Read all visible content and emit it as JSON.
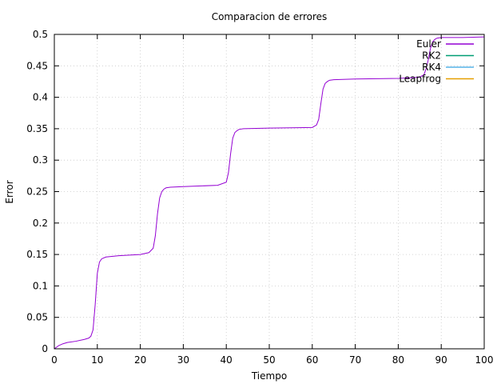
{
  "chart_data": {
    "type": "line",
    "title": "Comparacion de errores",
    "xlabel": "Tiempo",
    "ylabel": "Error",
    "xlim": [
      0,
      100
    ],
    "ylim": [
      0,
      0.5
    ],
    "xticks": [
      0,
      10,
      20,
      30,
      40,
      50,
      60,
      70,
      80,
      90,
      100
    ],
    "yticks": [
      0,
      0.05,
      0.1,
      0.15,
      0.2,
      0.25,
      0.3,
      0.35,
      0.4,
      0.45,
      0.5
    ],
    "grid": true,
    "legend_position": "top-right",
    "series": [
      {
        "name": "Euler",
        "color": "#9400d3",
        "x": [
          0,
          1,
          2,
          3,
          5,
          7,
          8,
          8.5,
          9,
          9.5,
          10,
          10.5,
          11,
          12,
          15,
          20,
          22,
          23,
          23.5,
          24,
          24.5,
          25,
          25.5,
          26,
          27,
          30,
          38,
          40,
          40.5,
          41,
          41.5,
          42,
          42.5,
          43,
          44,
          50,
          60,
          61,
          61.5,
          62,
          62.5,
          63,
          63.5,
          64,
          65,
          70,
          80,
          85,
          86,
          86.5,
          87,
          87.5,
          88,
          88.5,
          89,
          90,
          95,
          100
        ],
        "y": [
          0,
          0.005,
          0.008,
          0.01,
          0.012,
          0.015,
          0.017,
          0.02,
          0.03,
          0.07,
          0.12,
          0.138,
          0.143,
          0.146,
          0.148,
          0.15,
          0.153,
          0.16,
          0.18,
          0.215,
          0.24,
          0.25,
          0.254,
          0.256,
          0.257,
          0.258,
          0.26,
          0.265,
          0.28,
          0.31,
          0.335,
          0.344,
          0.347,
          0.349,
          0.35,
          0.351,
          0.352,
          0.356,
          0.365,
          0.39,
          0.413,
          0.422,
          0.425,
          0.427,
          0.428,
          0.429,
          0.43,
          0.432,
          0.436,
          0.446,
          0.46,
          0.478,
          0.488,
          0.492,
          0.494,
          0.495,
          0.495,
          0.496
        ]
      },
      {
        "name": "RK2",
        "color": "#009e73",
        "x": [
          0,
          100
        ],
        "y": [
          0,
          0
        ]
      },
      {
        "name": "RK4",
        "color": "#56b4e9",
        "x": [
          0,
          100
        ],
        "y": [
          0,
          0
        ]
      },
      {
        "name": "Leapfrog",
        "color": "#e69f00",
        "x": [
          0,
          100
        ],
        "y": [
          0,
          0
        ]
      }
    ]
  }
}
